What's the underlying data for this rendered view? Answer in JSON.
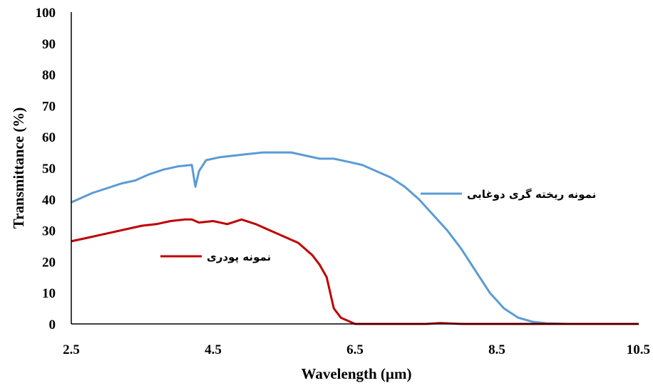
{
  "chart_data": {
    "type": "line",
    "title": "",
    "xlabel": "Wavelength (µm)",
    "ylabel": "Transmittance (%)",
    "xlim": [
      2.5,
      10.5
    ],
    "ylim": [
      0,
      100
    ],
    "xticks": [
      "2.5",
      "4.5",
      "6.5",
      "8.5",
      "10.5"
    ],
    "yticks": [
      "0",
      "10",
      "20",
      "30",
      "40",
      "50",
      "60",
      "70",
      "80",
      "90",
      "100"
    ],
    "grid": false,
    "legend_position": "inline-right",
    "series": [
      {
        "name": "نمونه ریخته گری دوغابی",
        "color": "#5b9bd5",
        "x": [
          2.5,
          2.6,
          2.7,
          2.8,
          3.0,
          3.2,
          3.4,
          3.6,
          3.8,
          4.0,
          4.2,
          4.25,
          4.3,
          4.4,
          4.6,
          4.8,
          5.0,
          5.2,
          5.4,
          5.6,
          5.8,
          6.0,
          6.2,
          6.4,
          6.6,
          6.8,
          7.0,
          7.2,
          7.4,
          7.6,
          7.8,
          8.0,
          8.2,
          8.4,
          8.6,
          8.8,
          9.0,
          9.2,
          9.5,
          10.0,
          10.5
        ],
        "y": [
          39,
          40,
          41,
          42,
          43.5,
          45,
          46,
          48,
          49.5,
          50.5,
          51,
          44,
          49,
          52.5,
          53.5,
          54,
          54.5,
          55,
          55,
          55,
          54,
          53,
          53,
          52,
          51,
          49,
          47,
          44,
          40,
          35,
          30,
          24,
          17,
          10,
          5,
          2,
          0.7,
          0.2,
          0,
          0,
          0
        ]
      },
      {
        "name": "نمونه پودری",
        "color": "#c00000",
        "x": [
          2.5,
          2.7,
          2.9,
          3.1,
          3.3,
          3.5,
          3.7,
          3.9,
          4.1,
          4.2,
          4.3,
          4.5,
          4.7,
          4.9,
          5.1,
          5.3,
          5.5,
          5.7,
          5.9,
          6.0,
          6.1,
          6.15,
          6.2,
          6.3,
          6.4,
          6.5,
          7.0,
          7.5,
          7.7,
          8.0,
          9.0,
          10.5
        ],
        "y": [
          26.5,
          27.5,
          28.5,
          29.5,
          30.5,
          31.5,
          32,
          33,
          33.5,
          33.5,
          32.5,
          33,
          32,
          33.5,
          32,
          30,
          28,
          26,
          22,
          19,
          15,
          10,
          5,
          2,
          1,
          0,
          0,
          0,
          0.3,
          0,
          0,
          0
        ]
      }
    ]
  }
}
